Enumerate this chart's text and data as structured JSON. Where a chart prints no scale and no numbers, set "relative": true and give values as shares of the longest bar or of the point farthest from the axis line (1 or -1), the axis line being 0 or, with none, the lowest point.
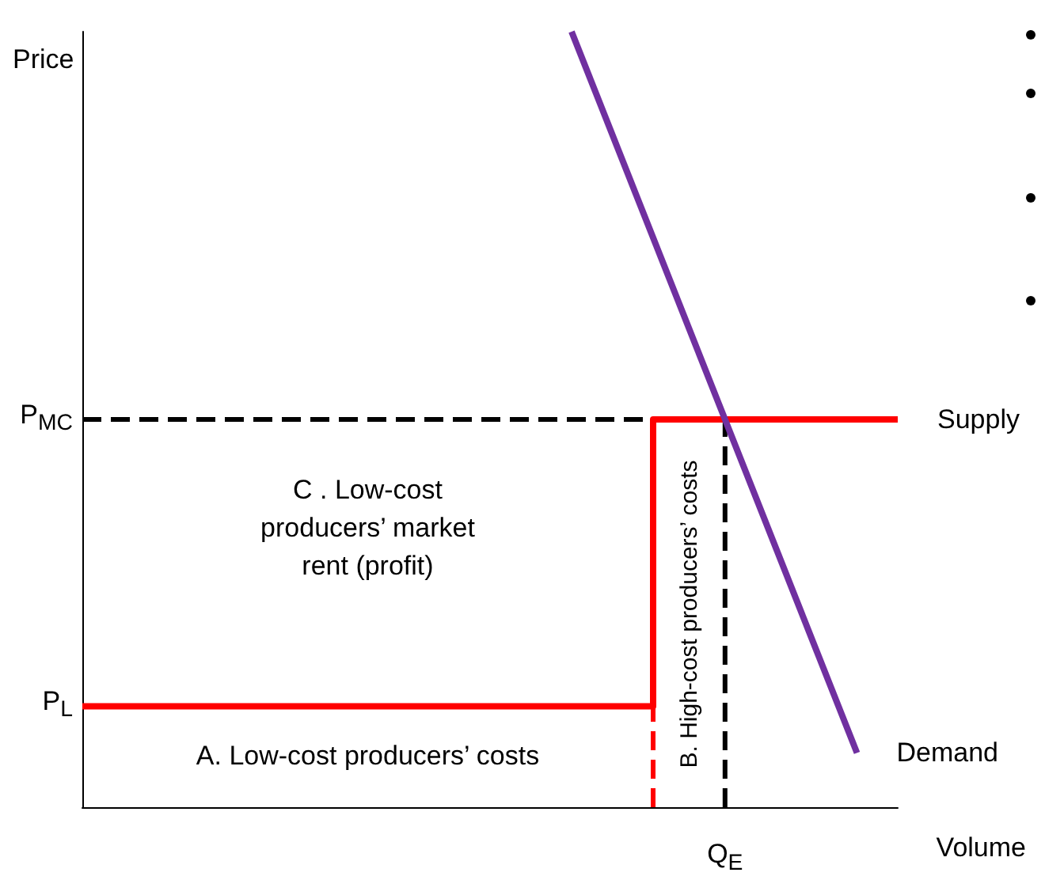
{
  "chart_data": {
    "type": "line",
    "relative": true,
    "ylabel": "Price",
    "xlabel": "Volume",
    "marker": "none",
    "grid": false,
    "legend": false,
    "categories": [
      null,
      null,
      null,
      null,
      null,
      null,
      null,
      null,
      null,
      null,
      null,
      null,
      null,
      null,
      null,
      null,
      null,
      null,
      null,
      null,
      null
    ],
    "series": [
      {
        "name": "Supply",
        "type": "step",
        "color": "#ff0000",
        "values": [
          0.13,
          0.13,
          0.13,
          0.13,
          0.13,
          0.13,
          0.13,
          0.13,
          0.13,
          0.13,
          0.13,
          0.13,
          0.13,
          0.13,
          0.5,
          0.5,
          0.5,
          0.5,
          0.5,
          0.5,
          0.5
        ]
      },
      {
        "name": "Demand",
        "color": "#7030a0",
        "values": [
          null,
          null,
          null,
          null,
          null,
          null,
          null,
          null,
          null,
          null,
          null,
          null,
          1,
          null,
          null,
          null,
          null,
          null,
          null,
          0.07,
          null
        ]
      }
    ],
    "ref_lines": [
      {
        "axis": "y",
        "value": 0.5,
        "label": "P$_{MC}$",
        "color": "#000000",
        "line_style": "dashed"
      }
    ],
    "annotations": [
      "P$_{L}$",
      "C .   Low-cost\nproducers’ market\nrent (profit)",
      "A.  Low-cost producers’ costs",
      "B. High-cost producers’ costs",
      "Q$_{E}$"
    ]
  }
}
